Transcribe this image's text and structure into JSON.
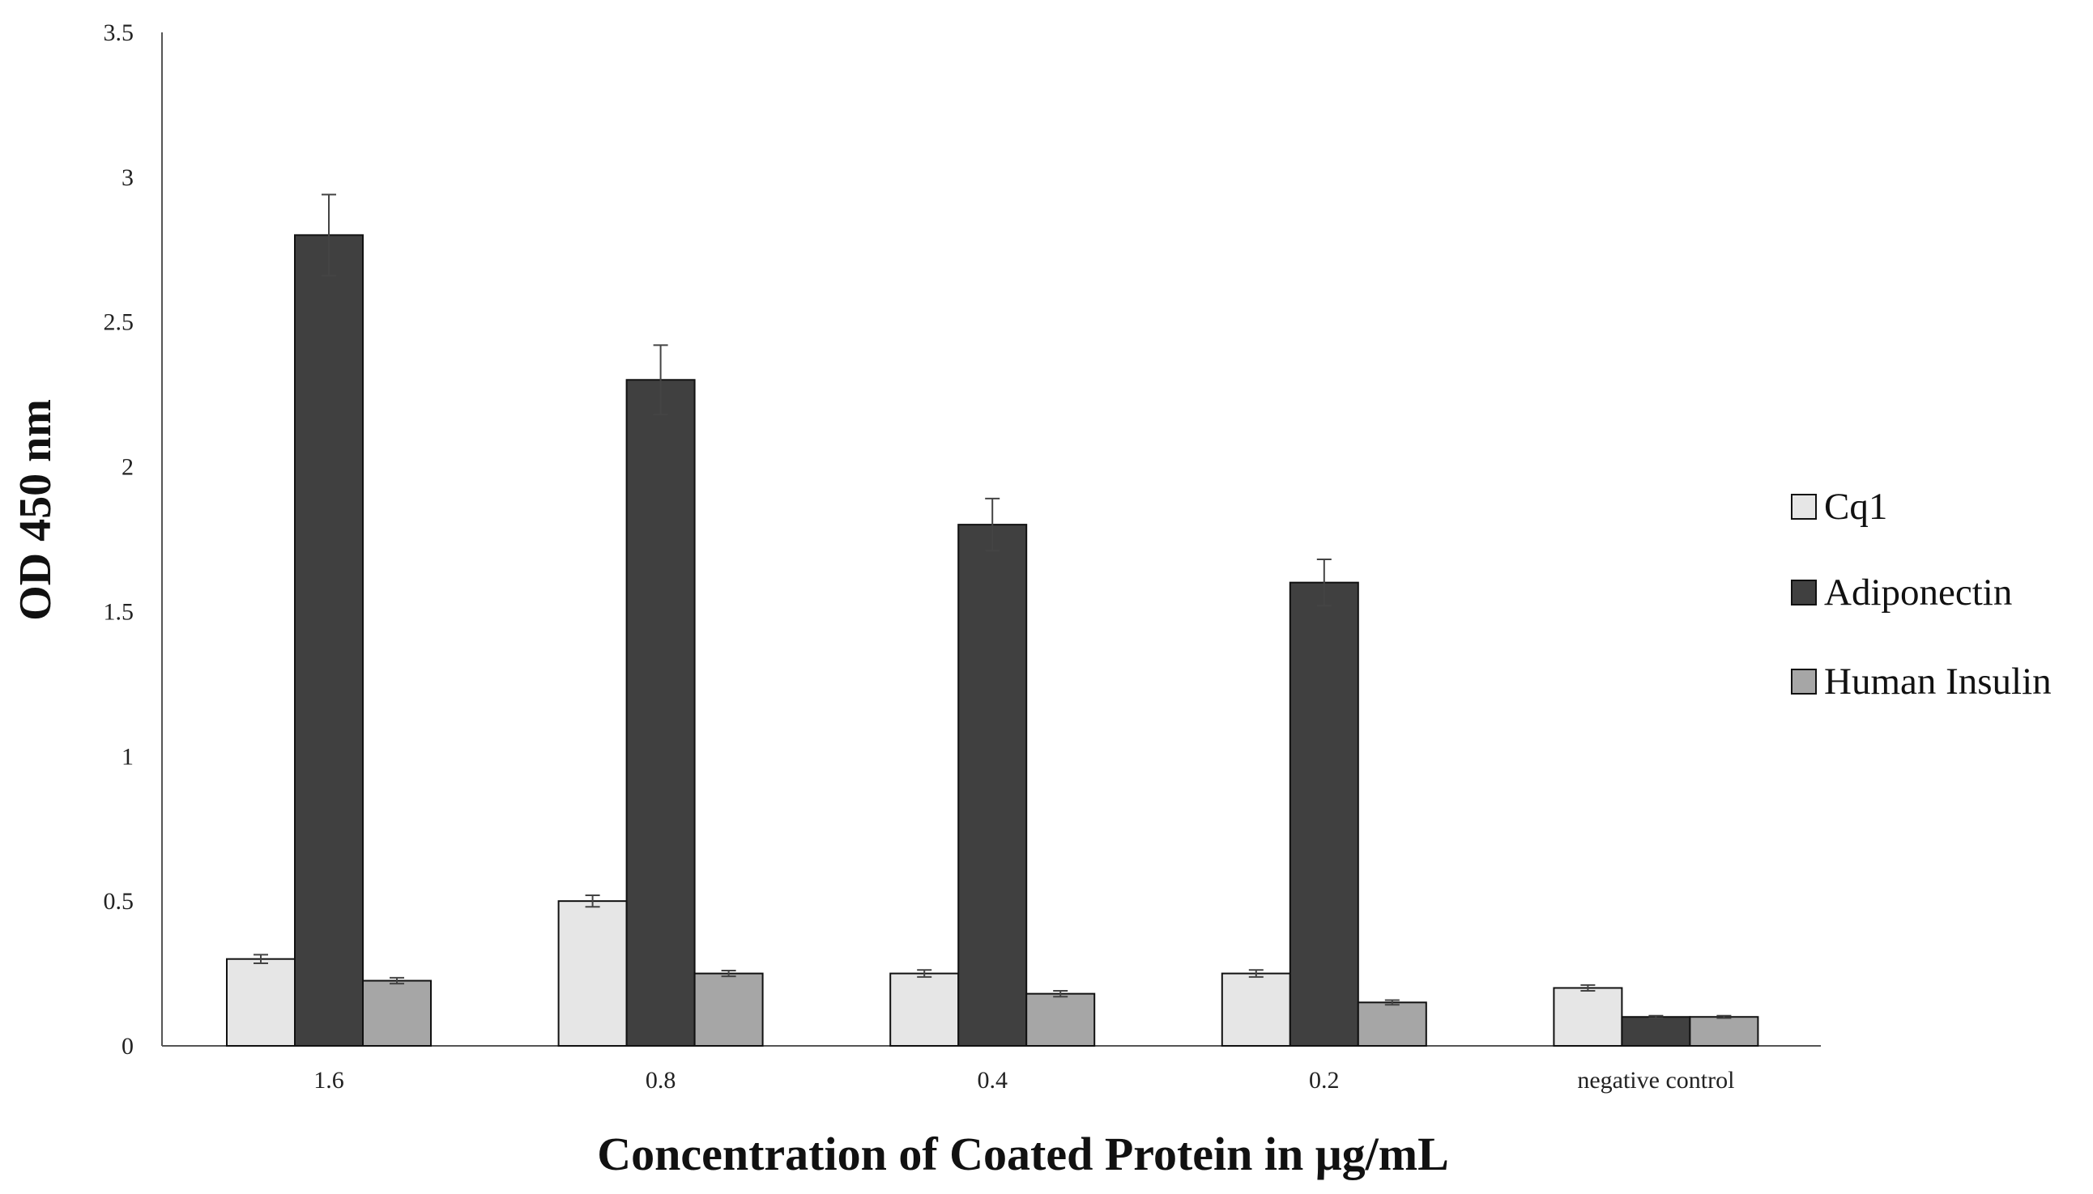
{
  "chart_data": {
    "type": "bar",
    "title": "",
    "xlabel": "Concentration of Coated Protein in μg/mL",
    "ylabel": "OD 450 nm",
    "categories": [
      "1.6",
      "0.8",
      "0.4",
      "0.2",
      "negative control"
    ],
    "ylim": [
      0,
      3.5
    ],
    "yticks": [
      0,
      0.5,
      1,
      1.5,
      2,
      2.5,
      3,
      3.5
    ],
    "ytick_labels": [
      "0",
      "0.5",
      "1",
      "1.5",
      "2",
      "2.5",
      "3",
      "3.5"
    ],
    "grid": false,
    "legend_position": "right",
    "series": [
      {
        "name": "Cq1",
        "color": "#e6e6e6",
        "values": [
          0.3,
          0.5,
          0.25,
          0.25,
          0.2
        ],
        "errors": [
          0.015,
          0.02,
          0.012,
          0.012,
          0.01
        ]
      },
      {
        "name": "Adiponectin",
        "color": "#404040",
        "values": [
          2.8,
          2.3,
          1.8,
          1.6,
          0.1
        ],
        "errors": [
          0.14,
          0.12,
          0.09,
          0.08,
          0.004
        ]
      },
      {
        "name": "Human Insulin",
        "color": "#a6a6a6",
        "values": [
          0.225,
          0.25,
          0.18,
          0.15,
          0.1
        ],
        "errors": [
          0.01,
          0.01,
          0.01,
          0.008,
          0.004
        ]
      }
    ]
  }
}
